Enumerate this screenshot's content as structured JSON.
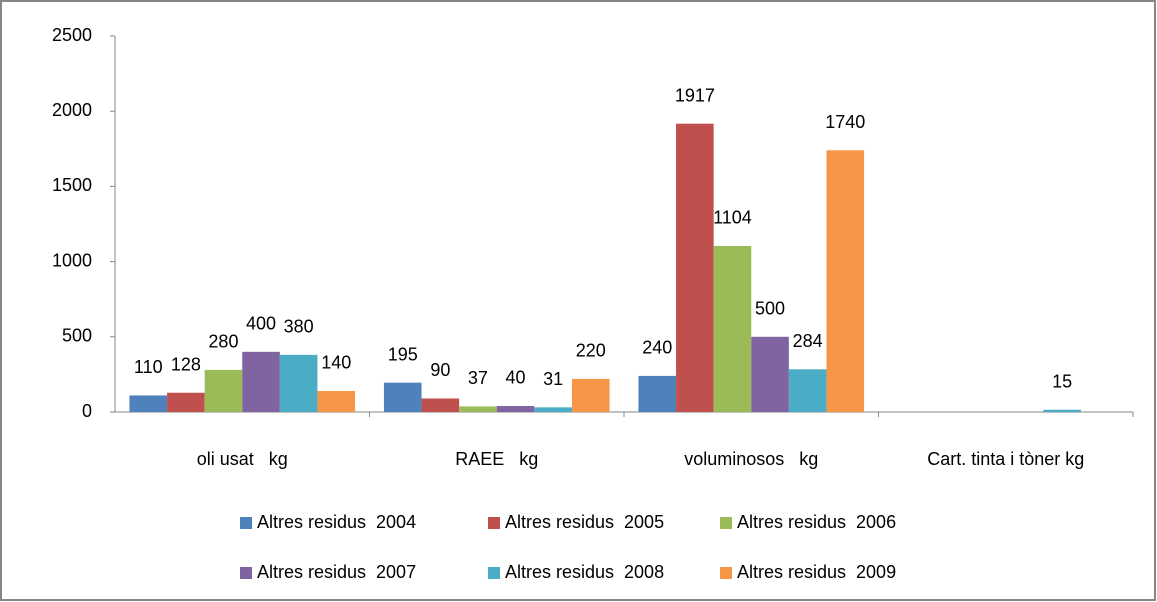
{
  "chart_data": {
    "type": "bar",
    "categories": [
      "oli usat   kg",
      "RAEE   kg",
      "voluminosos   kg",
      "Cart. tinta i tòner kg"
    ],
    "series": [
      {
        "name": "Altres residus  2004",
        "color": "#4f81bd",
        "values": [
          110,
          195,
          240,
          null
        ]
      },
      {
        "name": "Altres residus  2005",
        "color": "#c0504d",
        "values": [
          128,
          90,
          1917,
          null
        ]
      },
      {
        "name": "Altres residus  2006",
        "color": "#9bbb59",
        "values": [
          280,
          37,
          1104,
          null
        ]
      },
      {
        "name": "Altres residus  2007",
        "color": "#8064a2",
        "values": [
          400,
          40,
          500,
          null
        ]
      },
      {
        "name": "Altres residus  2008",
        "color": "#4bacc6",
        "values": [
          380,
          31,
          284,
          15
        ]
      },
      {
        "name": "Altres residus  2009",
        "color": "#f79646",
        "values": [
          140,
          220,
          1740,
          null
        ]
      }
    ],
    "ylim": [
      0,
      2500
    ],
    "yticks": [
      0,
      500,
      1000,
      1500,
      2000,
      2500
    ],
    "legend": "bottom"
  }
}
